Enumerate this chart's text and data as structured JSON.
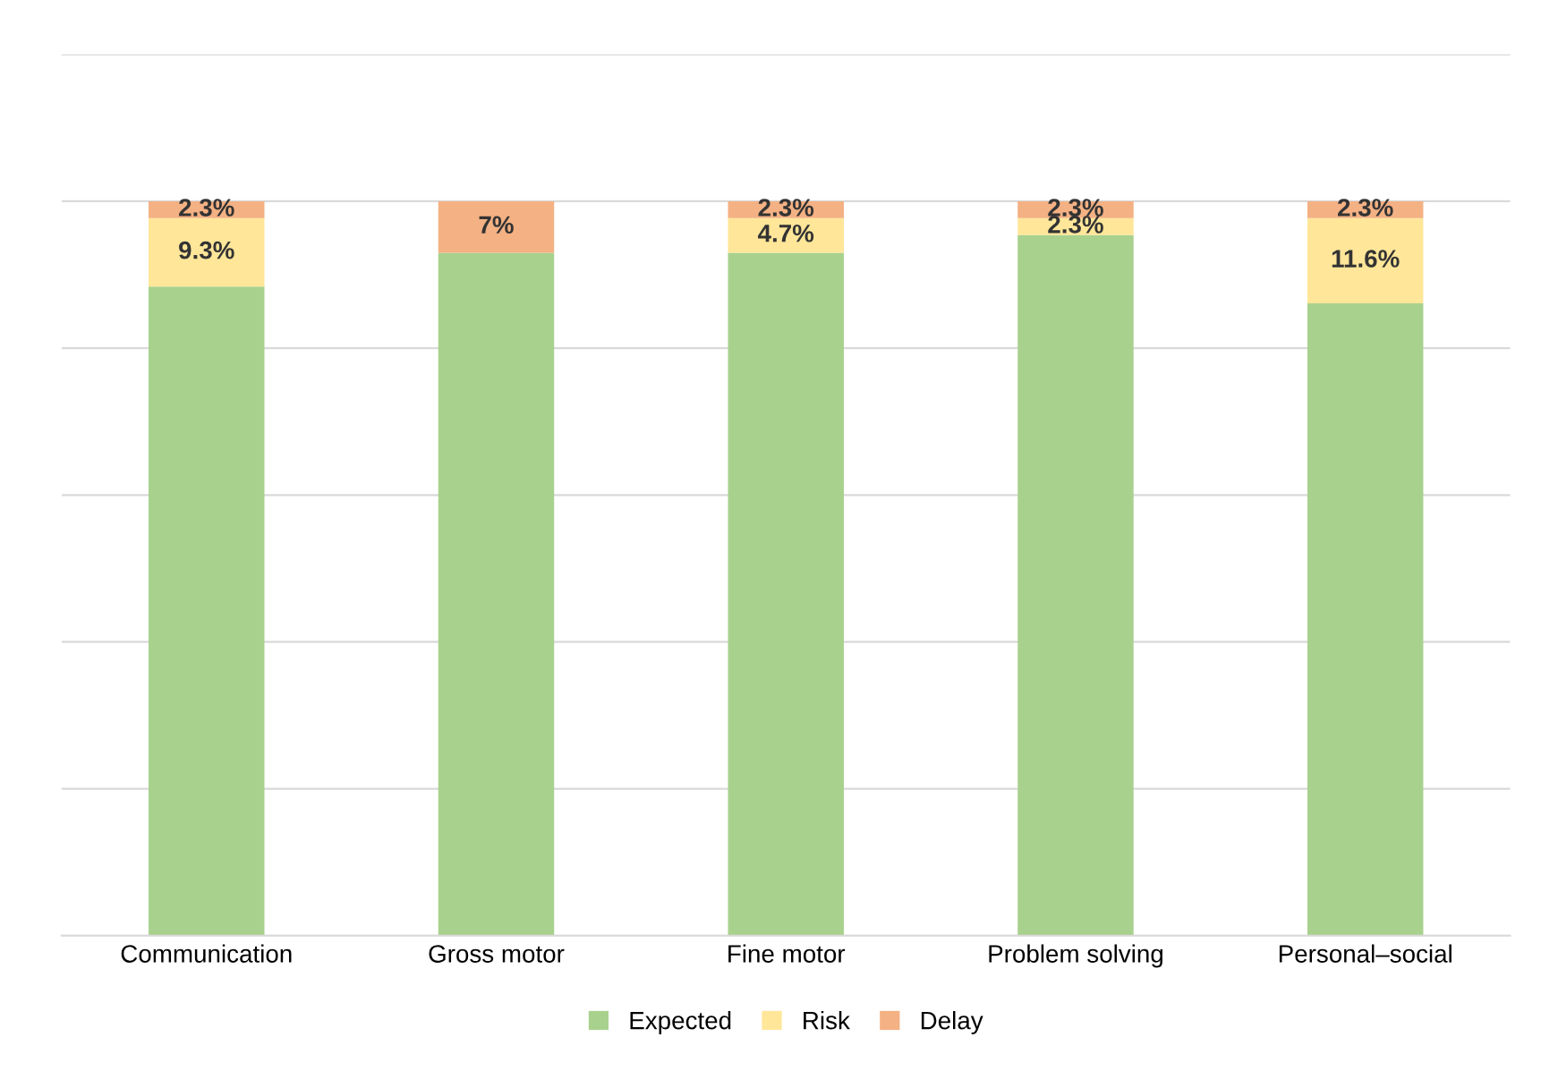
{
  "chart_data": {
    "type": "bar",
    "stacked": true,
    "categories": [
      "Communication",
      "Gross motor",
      "Fine motor",
      "Problem solving",
      "Personal–social"
    ],
    "series": [
      {
        "name": "Expected",
        "color": "#a9d18e",
        "values": [
          88.4,
          93,
          93,
          95.4,
          86.1
        ],
        "value_labels": [
          null,
          null,
          null,
          null,
          null
        ]
      },
      {
        "name": "Risk",
        "color": "#ffe699",
        "values": [
          9.3,
          0,
          4.7,
          2.3,
          11.6
        ],
        "value_labels": [
          "9.3%",
          null,
          "4.7%",
          "2.3%",
          "11.6%"
        ]
      },
      {
        "name": "Delay",
        "color": "#f4b183",
        "values": [
          2.3,
          7,
          2.3,
          2.3,
          2.3
        ],
        "value_labels": [
          "2.3%",
          "7%",
          "2.3%",
          "2.3%",
          "2.3%"
        ]
      }
    ],
    "ylim": [
      0,
      120
    ],
    "yticks": [
      {
        "value": 0,
        "label": null
      },
      {
        "value": 20,
        "label": null
      },
      {
        "value": 40,
        "label": null
      },
      {
        "value": 60,
        "label": null
      },
      {
        "value": 80,
        "label": null
      },
      {
        "value": 100,
        "label": null
      },
      {
        "value": 120,
        "label": null
      }
    ],
    "tick_labels": "x",
    "grid": "y",
    "legend": "bottom"
  }
}
